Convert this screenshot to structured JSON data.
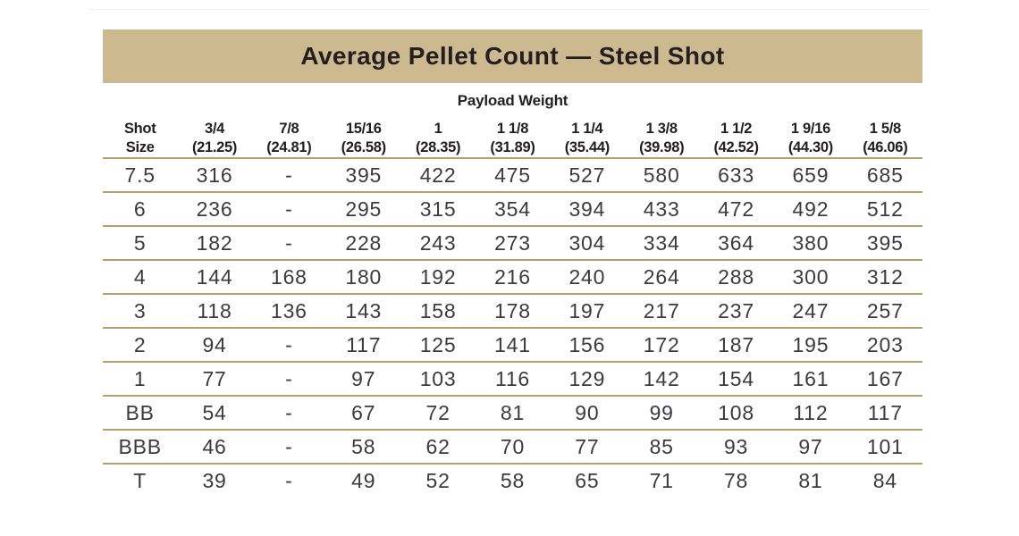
{
  "page": {
    "title": "Average Pellet Count — Steel Shot",
    "payload_weight_label": "Payload Weight"
  },
  "colors": {
    "banner": "#cdb98f",
    "rule": "#b3a06b",
    "title_text": "#231f20",
    "data_text": "#3b3a40"
  },
  "table": {
    "columns": [
      {
        "line1": "Shot",
        "line2": "Size"
      },
      {
        "line1": "3/4",
        "line2": "(21.25)"
      },
      {
        "line1": "7/8",
        "line2": "(24.81)"
      },
      {
        "line1": "15/16",
        "line2": "(26.58)"
      },
      {
        "line1": "1",
        "line2": "(28.35)"
      },
      {
        "line1": "1 1/8",
        "line2": "(31.89)"
      },
      {
        "line1": "1 1/4",
        "line2": "(35.44)"
      },
      {
        "line1": "1 3/8",
        "line2": "(39.98)"
      },
      {
        "line1": "1 1/2",
        "line2": "(42.52)"
      },
      {
        "line1": "1 9/16",
        "line2": "(44.30)"
      },
      {
        "line1": "1 5/8",
        "line2": "(46.06)"
      }
    ],
    "rows": [
      {
        "shot_size": "7.5",
        "values": [
          "316",
          "-",
          "395",
          "422",
          "475",
          "527",
          "580",
          "633",
          "659",
          "685"
        ]
      },
      {
        "shot_size": "6",
        "values": [
          "236",
          "-",
          "295",
          "315",
          "354",
          "394",
          "433",
          "472",
          "492",
          "512"
        ]
      },
      {
        "shot_size": "5",
        "values": [
          "182",
          "-",
          "228",
          "243",
          "273",
          "304",
          "334",
          "364",
          "380",
          "395"
        ]
      },
      {
        "shot_size": "4",
        "values": [
          "144",
          "168",
          "180",
          "192",
          "216",
          "240",
          "264",
          "288",
          "300",
          "312"
        ]
      },
      {
        "shot_size": "3",
        "values": [
          "118",
          "136",
          "143",
          "158",
          "178",
          "197",
          "217",
          "237",
          "247",
          "257"
        ]
      },
      {
        "shot_size": "2",
        "values": [
          "94",
          "-",
          "117",
          "125",
          "141",
          "156",
          "172",
          "187",
          "195",
          "203"
        ]
      },
      {
        "shot_size": "1",
        "values": [
          "77",
          "-",
          "97",
          "103",
          "116",
          "129",
          "142",
          "154",
          "161",
          "167"
        ]
      },
      {
        "shot_size": "BB",
        "values": [
          "54",
          "-",
          "67",
          "72",
          "81",
          "90",
          "99",
          "108",
          "112",
          "117"
        ]
      },
      {
        "shot_size": "BBB",
        "values": [
          "46",
          "-",
          "58",
          "62",
          "70",
          "77",
          "85",
          "93",
          "97",
          "101"
        ]
      },
      {
        "shot_size": "T",
        "values": [
          "39",
          "-",
          "49",
          "52",
          "58",
          "65",
          "71",
          "78",
          "81",
          "84"
        ]
      }
    ]
  }
}
